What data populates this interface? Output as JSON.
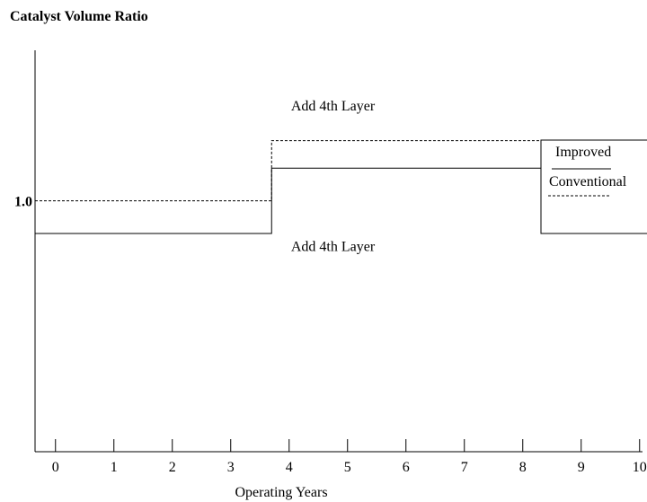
{
  "chart_data": {
    "type": "line",
    "title": "",
    "ylabel": "Catalyst Volume Ratio",
    "xlabel": "Operating Years",
    "xlim": [
      -0.35,
      10.05
    ],
    "ylim": [
      0,
      1.6
    ],
    "x_ticks": [
      0,
      1,
      2,
      3,
      4,
      5,
      6,
      7,
      8,
      9,
      10
    ],
    "x_tick_labels": [
      "0",
      "1",
      "2",
      "3",
      "4",
      "5",
      "6",
      "7",
      "8",
      "9",
      "10"
    ],
    "y_tick_labels": [
      "1.0"
    ],
    "y_ticks": [
      1.0
    ],
    "grid": false,
    "legend_position": "top-right",
    "series": [
      {
        "name": "Improved",
        "style": "solid",
        "color": "#000000",
        "x": [
          -0.35,
          3.7,
          3.7,
          10.05
        ],
        "y": [
          0.87,
          0.87,
          1.13,
          1.13
        ]
      },
      {
        "name": "Conventional",
        "style": "dashed",
        "color": "#000000",
        "x": [
          -0.35,
          3.7,
          3.7,
          10.05
        ],
        "y": [
          1.0,
          1.0,
          1.24,
          1.24
        ]
      }
    ],
    "annotations": [
      {
        "text": "Add 4th Layer",
        "x": 4.75,
        "y": 1.36
      },
      {
        "text": "Add 4th Layer",
        "x": 4.75,
        "y": 0.8
      }
    ]
  }
}
